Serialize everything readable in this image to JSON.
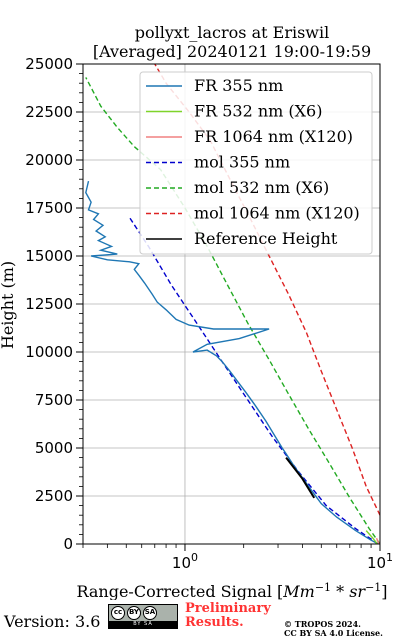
{
  "chart_data": {
    "type": "line",
    "title": "pollyxt_lacros at Eriswil",
    "subtitle": "[Averaged] 20240121 19:00-19:59",
    "xlabel": "Range-Corrected Signal [Mm^{-1} * sr^{-1}]",
    "ylabel": "Height (m)",
    "xscale": "log",
    "xlim": [
      0.3,
      10
    ],
    "ylim": [
      0,
      25000
    ],
    "x_tick_labels": [
      "10^0",
      "10^1"
    ],
    "y_tick_labels": [
      "0",
      "2500",
      "5000",
      "7500",
      "10000",
      "12500",
      "15000",
      "17500",
      "20000",
      "22500",
      "25000"
    ],
    "grid": true,
    "legend_position": "top-right",
    "series": [
      {
        "name": "FR 355 nm",
        "color": "#1f77b4",
        "style": "solid",
        "points": [
          [
            9.8,
            0
          ],
          [
            9.0,
            200
          ],
          [
            7.5,
            700
          ],
          [
            6.0,
            1400
          ],
          [
            5.0,
            2100
          ],
          [
            4.6,
            2600
          ],
          [
            4.1,
            3300
          ],
          [
            3.6,
            4100
          ],
          [
            3.3,
            4700
          ],
          [
            3.15,
            5000
          ],
          [
            2.9,
            5600
          ],
          [
            2.6,
            6400
          ],
          [
            2.3,
            7200
          ],
          [
            2.05,
            7900
          ],
          [
            1.85,
            8500
          ],
          [
            1.7,
            9000
          ],
          [
            1.55,
            9500
          ],
          [
            1.45,
            9800
          ],
          [
            1.3,
            10100
          ],
          [
            1.1,
            10000
          ],
          [
            1.3,
            10400
          ],
          [
            1.9,
            10700
          ],
          [
            2.7,
            11200
          ],
          [
            1.4,
            11200
          ],
          [
            1.05,
            11400
          ],
          [
            0.9,
            11700
          ],
          [
            0.8,
            12200
          ],
          [
            0.72,
            12600
          ],
          [
            0.68,
            13000
          ],
          [
            0.62,
            13600
          ],
          [
            0.58,
            14000
          ],
          [
            0.55,
            14300
          ],
          [
            0.58,
            14600
          ],
          [
            0.52,
            14700
          ],
          [
            0.4,
            14800
          ],
          [
            0.33,
            15000
          ],
          [
            0.45,
            15100
          ],
          [
            0.37,
            15300
          ],
          [
            0.42,
            15500
          ],
          [
            0.36,
            15800
          ],
          [
            0.39,
            16000
          ],
          [
            0.35,
            16300
          ],
          [
            0.38,
            16600
          ],
          [
            0.34,
            16900
          ],
          [
            0.36,
            17200
          ],
          [
            0.32,
            17400
          ],
          [
            0.33,
            17800
          ],
          [
            0.31,
            18300
          ],
          [
            0.32,
            18900
          ]
        ]
      },
      {
        "name": "FR 532 nm (X6)",
        "color": "#7fd42a",
        "style": "solid",
        "points": [
          [
            9.7,
            0
          ],
          [
            9.2,
            300
          ],
          [
            8.5,
            700
          ]
        ]
      },
      {
        "name": "FR 1064 nm (X120)",
        "color": "#f08080",
        "style": "solid",
        "points": [
          [
            9.9,
            0
          ],
          [
            9.6,
            300
          ]
        ]
      },
      {
        "name": "mol 355 nm",
        "color": "#0000cd",
        "style": "dashed",
        "points": [
          [
            9.8,
            0
          ],
          [
            7.5,
            800
          ],
          [
            5.3,
            2000
          ],
          [
            3.8,
            3800
          ],
          [
            2.8,
            5600
          ],
          [
            2.1,
            7500
          ],
          [
            1.55,
            9500
          ],
          [
            1.15,
            11500
          ],
          [
            0.85,
            13500
          ],
          [
            0.65,
            15500
          ],
          [
            0.52,
            17000
          ]
        ]
      },
      {
        "name": "mol 532 nm (X6)",
        "color": "#22aa22",
        "style": "dashed",
        "points": [
          [
            10.0,
            0
          ],
          [
            8.8,
            800
          ],
          [
            7.0,
            2400
          ],
          [
            5.5,
            4200
          ],
          [
            4.3,
            6000
          ],
          [
            3.4,
            7800
          ],
          [
            2.7,
            9600
          ],
          [
            2.1,
            11500
          ],
          [
            1.65,
            13500
          ],
          [
            1.3,
            15500
          ],
          [
            1.0,
            17500
          ],
          [
            0.75,
            19500
          ],
          [
            0.55,
            20700
          ],
          [
            0.45,
            21700
          ],
          [
            0.37,
            22800
          ],
          [
            0.31,
            24300
          ]
        ]
      },
      {
        "name": "mol 1064 nm (X120)",
        "color": "#dd2222",
        "style": "dashed",
        "points": [
          [
            10.0,
            1500
          ],
          [
            8.5,
            3000
          ],
          [
            7.2,
            5000
          ],
          [
            6.0,
            7000
          ],
          [
            5.0,
            9000
          ],
          [
            4.2,
            11000
          ],
          [
            3.4,
            13000
          ],
          [
            2.7,
            15000
          ],
          [
            2.15,
            17000
          ],
          [
            1.7,
            19000
          ],
          [
            1.35,
            21000
          ],
          [
            1.05,
            22500
          ],
          [
            0.8,
            24000
          ],
          [
            0.7,
            25000
          ]
        ]
      },
      {
        "name": "Reference Height",
        "color": "#000000",
        "style": "solid",
        "points": [
          [
            3.3,
            4500
          ],
          [
            4.0,
            3400
          ],
          [
            4.6,
            2400
          ]
        ]
      }
    ]
  },
  "footer": {
    "version": "Version: 3.6",
    "cc_label": "cc",
    "cc_by": "BY",
    "cc_sa": "SA",
    "cc_bottom_text": "BY  SA",
    "preliminary_line1": "Preliminary",
    "preliminary_line2": "Results.",
    "copyright_line1": "© TROPOS 2024.",
    "copyright_line2": "CC BY SA 4.0 License."
  }
}
